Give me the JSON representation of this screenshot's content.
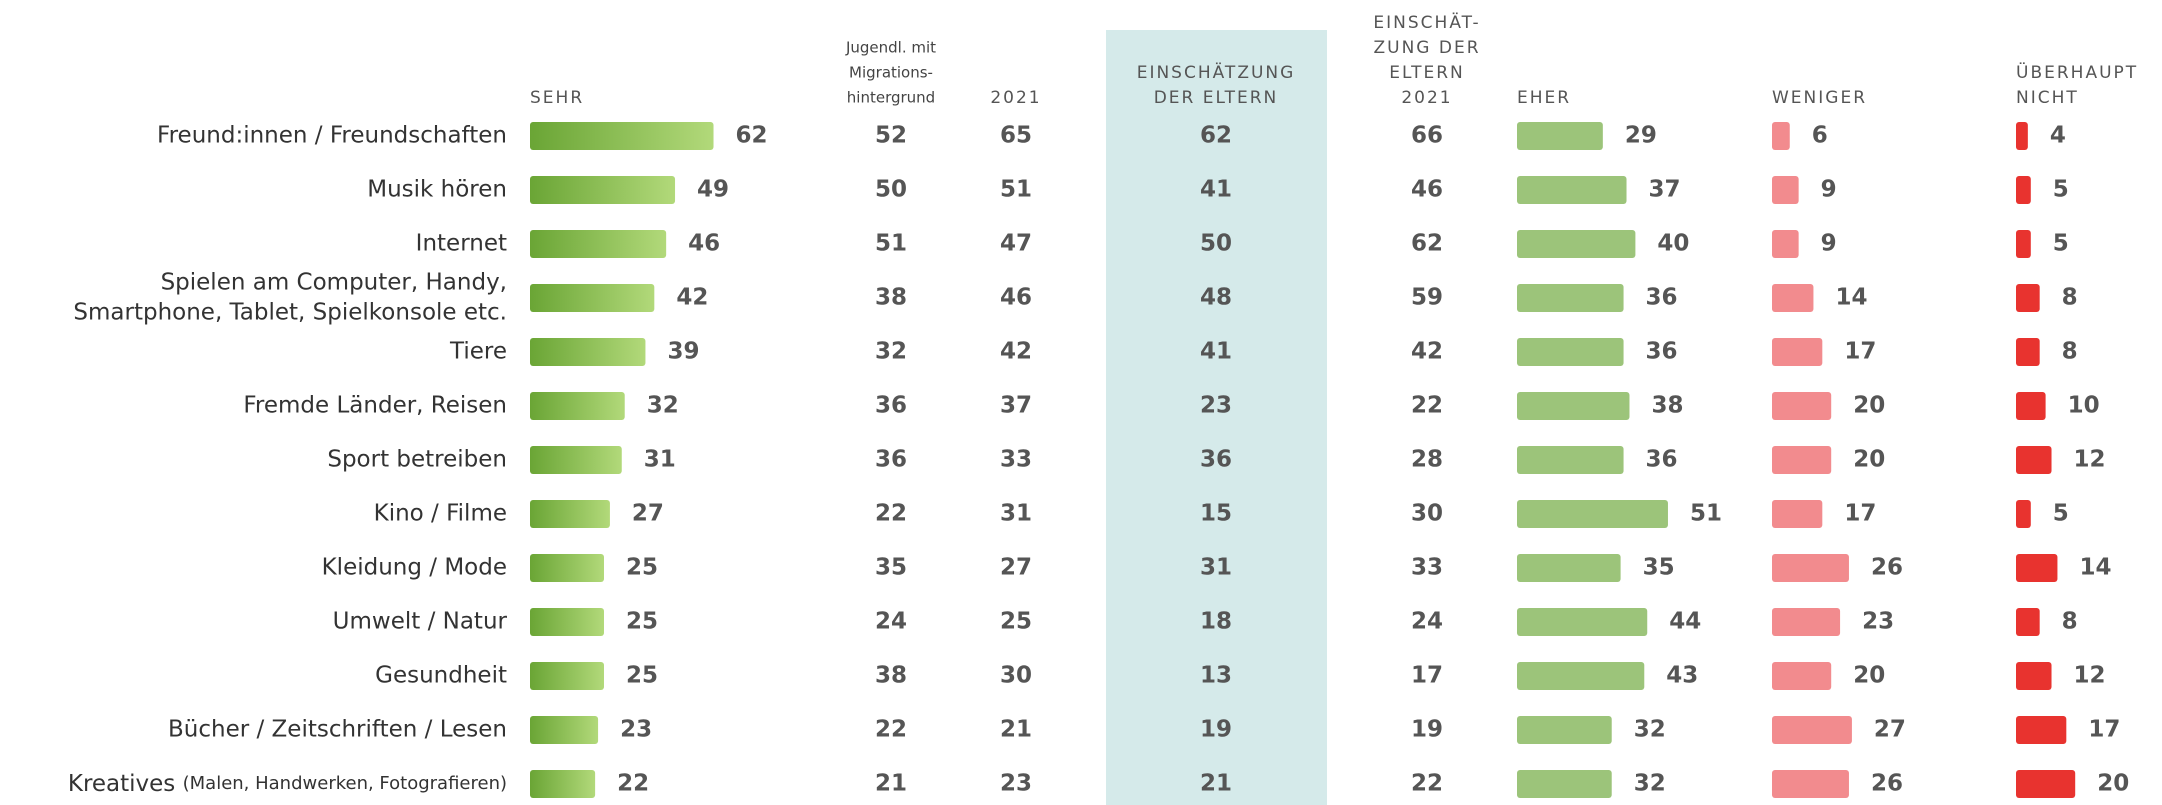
{
  "columns": [
    {
      "header": [
        "SEHR"
      ],
      "align": "bar",
      "bar": "#7fb547"
    },
    {
      "header": [
        "Jugendl. mit",
        "Migrations-",
        "hintergrund"
      ],
      "align": "center"
    },
    {
      "header": [
        "2021"
      ],
      "align": "center"
    },
    {
      "header": [
        "EINSCHÄTZUNG",
        "DER ELTERN"
      ],
      "align": "center",
      "highlight": "#d5eaea"
    },
    {
      "header": [
        "EINSCHÄT-",
        "ZUNG DER",
        "ELTERN",
        "2021"
      ],
      "align": "center"
    },
    {
      "header": [
        "EHER"
      ],
      "align": "bar",
      "bar": "#9cc47a"
    },
    {
      "header": [
        "WENIGER"
      ],
      "align": "bar",
      "bar": "#f28b8e"
    },
    {
      "header": [
        "ÜBERHAUPT",
        "NICHT"
      ],
      "align": "bar",
      "bar": "#e8332f"
    }
  ],
  "rows": [
    {
      "label": [
        "Freund:innen / Freundschaften"
      ],
      "values": [
        62,
        52,
        65,
        62,
        66,
        29,
        6,
        4
      ]
    },
    {
      "label": [
        "Musik hören"
      ],
      "values": [
        49,
        50,
        51,
        41,
        46,
        37,
        9,
        5
      ]
    },
    {
      "label": [
        "Internet"
      ],
      "values": [
        46,
        51,
        47,
        50,
        62,
        40,
        9,
        5
      ]
    },
    {
      "label": [
        "Spielen am Computer, Handy,",
        "Smartphone, Tablet, Spielkonsole etc."
      ],
      "values": [
        42,
        38,
        46,
        48,
        59,
        36,
        14,
        8
      ]
    },
    {
      "label": [
        "Tiere"
      ],
      "values": [
        39,
        32,
        42,
        41,
        42,
        36,
        17,
        8
      ]
    },
    {
      "label": [
        "Fremde Länder, Reisen"
      ],
      "values": [
        32,
        36,
        37,
        23,
        22,
        38,
        20,
        10
      ]
    },
    {
      "label": [
        "Sport betreiben"
      ],
      "values": [
        31,
        36,
        33,
        36,
        28,
        36,
        20,
        12
      ]
    },
    {
      "label": [
        "Kino / Filme"
      ],
      "values": [
        27,
        22,
        31,
        15,
        30,
        51,
        17,
        5
      ]
    },
    {
      "label": [
        "Kleidung / Mode"
      ],
      "values": [
        25,
        35,
        27,
        31,
        33,
        35,
        26,
        14
      ]
    },
    {
      "label": [
        "Umwelt / Natur"
      ],
      "values": [
        25,
        24,
        25,
        18,
        24,
        44,
        23,
        8
      ]
    },
    {
      "label": [
        "Gesundheit"
      ],
      "values": [
        25,
        38,
        30,
        13,
        17,
        43,
        20,
        12
      ]
    },
    {
      "label": [
        "Bücher / Zeitschriften / Lesen"
      ],
      "values": [
        23,
        22,
        21,
        19,
        19,
        32,
        27,
        17
      ]
    },
    {
      "label": [
        "Kreatives"
      ],
      "note": "(Malen, Handwerken, Fotografieren)",
      "values": [
        22,
        21,
        23,
        21,
        22,
        32,
        26,
        20
      ]
    }
  ]
}
